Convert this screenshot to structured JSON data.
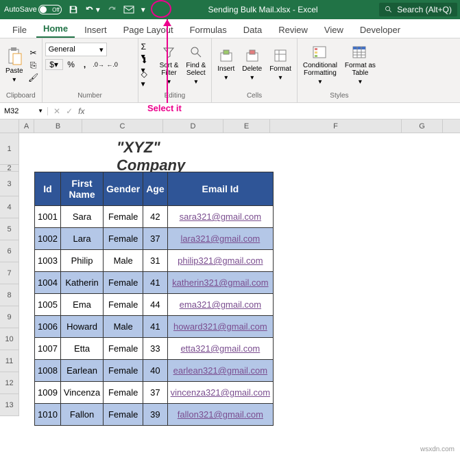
{
  "titlebar": {
    "autosave": "AutoSave",
    "toggle_state": "Off",
    "filename": "Sending Bulk Mail.xlsx",
    "app": "Excel",
    "search_placeholder": "Search (Alt+Q)"
  },
  "tabs": [
    "File",
    "Home",
    "Insert",
    "Page Layout",
    "Formulas",
    "Data",
    "Review",
    "View",
    "Developer"
  ],
  "active_tab": "Home",
  "ribbon": {
    "clipboard": {
      "label": "Clipboard",
      "paste": "Paste"
    },
    "number": {
      "label": "Number",
      "format": "General"
    },
    "editing": {
      "label": "Editing",
      "sort": "Sort &\nFilter",
      "find": "Find &\nSelect"
    },
    "cells": {
      "label": "Cells",
      "insert": "Insert",
      "delete": "Delete",
      "format": "Format"
    },
    "styles": {
      "label": "Styles",
      "cond": "Conditional\nFormatting",
      "table": "Format as\nTable"
    }
  },
  "annotation": "Select it",
  "namebox": "M32",
  "columns": {
    "letters": [
      "A",
      "B",
      "C",
      "D",
      "E",
      "F",
      "G"
    ],
    "widths": [
      22,
      70,
      118,
      88,
      68,
      192,
      60
    ]
  },
  "row_heights": {
    "title": 46,
    "gap": 10,
    "header": 36,
    "data": 32
  },
  "company_title": "\"XYZ\" Company",
  "table": {
    "header_bg": "#2f5597",
    "header_color": "#ffffff",
    "alt_bg": "#b4c7e7",
    "border": "#333333",
    "headers": [
      "Id",
      "First Name",
      "Gender",
      "Age",
      "Email Id"
    ],
    "rows": [
      {
        "id": "1001",
        "name": "Sara",
        "gender": "Female",
        "age": "42",
        "email": "sara321@gmail.com"
      },
      {
        "id": "1002",
        "name": "Lara",
        "gender": "Female",
        "age": "37",
        "email": "lara321@gmail.com"
      },
      {
        "id": "1003",
        "name": "Philip",
        "gender": "Male",
        "age": "31",
        "email": "philip321@gmail.com"
      },
      {
        "id": "1004",
        "name": "Katherin",
        "gender": "Female",
        "age": "41",
        "email": "katherin321@gmail.com"
      },
      {
        "id": "1005",
        "name": "Ema",
        "gender": "Female",
        "age": "44",
        "email": "ema321@gmail.com"
      },
      {
        "id": "1006",
        "name": "Howard",
        "gender": "Male",
        "age": "41",
        "email": "howard321@gmail.com"
      },
      {
        "id": "1007",
        "name": "Etta",
        "gender": "Female",
        "age": "33",
        "email": "etta321@gmail.com"
      },
      {
        "id": "1008",
        "name": "Earlean",
        "gender": "Female",
        "age": "40",
        "email": "earlean321@gmail.com"
      },
      {
        "id": "1009",
        "name": "Vincenza",
        "gender": "Female",
        "age": "37",
        "email": "vincenza321@gmail.com"
      },
      {
        "id": "1010",
        "name": "Fallon",
        "gender": "Female",
        "age": "39",
        "email": "fallon321@gmail.com"
      }
    ]
  },
  "watermark": "wsxdn.com"
}
